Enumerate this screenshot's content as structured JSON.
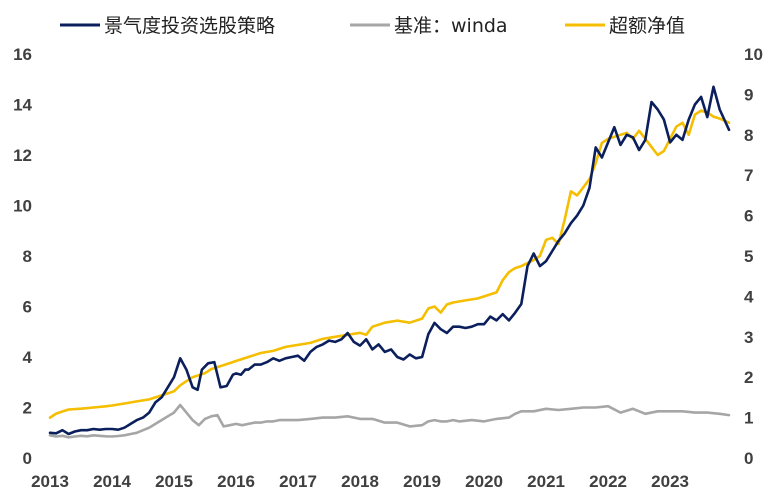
{
  "chart_data": {
    "type": "line",
    "title": "",
    "legend": [
      {
        "name": "景气度投资选股策略",
        "color": "#0B1F5C",
        "axis": "left"
      },
      {
        "name": "基准：winda",
        "color": "#A6A6A6",
        "axis": "left"
      },
      {
        "name": "超额净值",
        "color": "#F5BE00",
        "axis": "right"
      }
    ],
    "legend_position": "top",
    "x_ticks": [
      "2013",
      "2014",
      "2015",
      "2016",
      "2017",
      "2018",
      "2019",
      "2020",
      "2021",
      "2022",
      "2023"
    ],
    "x_range": [
      2013.0,
      2023.95
    ],
    "left_axis": {
      "min": 0,
      "max": 16,
      "ticks": [
        "0",
        "2",
        "4",
        "6",
        "8",
        "10",
        "12",
        "14",
        "16"
      ]
    },
    "right_axis": {
      "min": 0,
      "max": 10,
      "ticks": [
        "0",
        "1",
        "2",
        "3",
        "4",
        "5",
        "6",
        "7",
        "8",
        "9",
        "10"
      ]
    },
    "grid": false,
    "series": [
      {
        "name": "景气度投资选股策略",
        "axis": "left",
        "color": "#0B1F5C",
        "x": [
          2013.0,
          2013.1,
          2013.2,
          2013.3,
          2013.4,
          2013.5,
          2013.6,
          2013.7,
          2013.8,
          2013.9,
          2014.0,
          2014.1,
          2014.2,
          2014.3,
          2014.4,
          2014.5,
          2014.6,
          2014.7,
          2014.8,
          2014.9,
          2015.0,
          2015.1,
          2015.2,
          2015.3,
          2015.38,
          2015.45,
          2015.55,
          2015.65,
          2015.75,
          2015.85,
          2015.95,
          2016.0,
          2016.08,
          2016.15,
          2016.2,
          2016.3,
          2016.4,
          2016.5,
          2016.6,
          2016.7,
          2016.8,
          2016.9,
          2017.0,
          2017.1,
          2017.2,
          2017.3,
          2017.4,
          2017.5,
          2017.6,
          2017.7,
          2017.8,
          2017.9,
          2018.0,
          2018.1,
          2018.2,
          2018.3,
          2018.4,
          2018.5,
          2018.6,
          2018.7,
          2018.8,
          2018.9,
          2019.0,
          2019.1,
          2019.2,
          2019.3,
          2019.4,
          2019.5,
          2019.6,
          2019.7,
          2019.8,
          2019.9,
          2020.0,
          2020.1,
          2020.2,
          2020.3,
          2020.4,
          2020.5,
          2020.6,
          2020.7,
          2020.8,
          2020.9,
          2021.0,
          2021.1,
          2021.2,
          2021.3,
          2021.4,
          2021.5,
          2021.6,
          2021.7,
          2021.8,
          2021.9,
          2022.0,
          2022.1,
          2022.2,
          2022.3,
          2022.4,
          2022.5,
          2022.6,
          2022.7,
          2022.8,
          2022.9,
          2023.0,
          2023.1,
          2023.2,
          2023.3,
          2023.4,
          2023.5,
          2023.6,
          2023.7,
          2023.8,
          2023.95
        ],
        "y": [
          1.0,
          0.98,
          1.1,
          0.95,
          1.05,
          1.1,
          1.1,
          1.15,
          1.12,
          1.15,
          1.15,
          1.12,
          1.2,
          1.35,
          1.5,
          1.6,
          1.8,
          2.2,
          2.4,
          2.8,
          3.2,
          3.95,
          3.5,
          2.8,
          2.7,
          3.5,
          3.75,
          3.8,
          2.8,
          2.85,
          3.3,
          3.35,
          3.3,
          3.5,
          3.5,
          3.7,
          3.7,
          3.8,
          3.95,
          3.85,
          3.95,
          4.0,
          4.05,
          3.85,
          4.2,
          4.4,
          4.5,
          4.65,
          4.6,
          4.7,
          4.95,
          4.6,
          4.45,
          4.7,
          4.3,
          4.5,
          4.2,
          4.3,
          4.0,
          3.9,
          4.1,
          3.95,
          4.0,
          4.9,
          5.35,
          5.1,
          4.95,
          5.2,
          5.2,
          5.15,
          5.2,
          5.3,
          5.3,
          5.6,
          5.45,
          5.7,
          5.45,
          5.75,
          6.1,
          7.6,
          8.1,
          7.6,
          7.8,
          8.2,
          8.6,
          8.9,
          9.3,
          9.6,
          10.0,
          10.7,
          12.3,
          11.9,
          12.5,
          13.1,
          12.4,
          12.8,
          12.7,
          12.2,
          12.6,
          14.1,
          13.8,
          13.4,
          12.5,
          12.8,
          12.6,
          13.4,
          14.0,
          14.3,
          13.5,
          14.7,
          13.8,
          13.0
        ],
        "note": "x values are in fractional years (data units)"
      },
      {
        "name": "基准：winda",
        "axis": "left",
        "color": "#A6A6A6",
        "x": [
          2013.0,
          2013.1,
          2013.2,
          2013.3,
          2013.4,
          2013.5,
          2013.6,
          2013.7,
          2013.8,
          2013.9,
          2014.0,
          2014.1,
          2014.2,
          2014.3,
          2014.4,
          2014.5,
          2014.6,
          2014.7,
          2014.8,
          2014.9,
          2015.0,
          2015.1,
          2015.2,
          2015.3,
          2015.4,
          2015.5,
          2015.6,
          2015.7,
          2015.8,
          2015.9,
          2016.0,
          2016.1,
          2016.2,
          2016.3,
          2016.4,
          2016.5,
          2016.6,
          2016.7,
          2016.8,
          2016.9,
          2017.0,
          2017.2,
          2017.4,
          2017.6,
          2017.8,
          2018.0,
          2018.2,
          2018.4,
          2018.6,
          2018.8,
          2019.0,
          2019.1,
          2019.2,
          2019.3,
          2019.4,
          2019.5,
          2019.6,
          2019.8,
          2020.0,
          2020.2,
          2020.4,
          2020.5,
          2020.6,
          2020.8,
          2021.0,
          2021.2,
          2021.4,
          2021.6,
          2021.8,
          2022.0,
          2022.2,
          2022.4,
          2022.6,
          2022.8,
          2023.0,
          2023.2,
          2023.4,
          2023.6,
          2023.8,
          2023.95
        ],
        "y": [
          0.9,
          0.85,
          0.88,
          0.82,
          0.85,
          0.88,
          0.86,
          0.9,
          0.88,
          0.86,
          0.85,
          0.87,
          0.9,
          0.95,
          1.0,
          1.1,
          1.2,
          1.35,
          1.5,
          1.65,
          1.8,
          2.1,
          1.8,
          1.5,
          1.3,
          1.55,
          1.65,
          1.7,
          1.25,
          1.3,
          1.35,
          1.3,
          1.35,
          1.4,
          1.4,
          1.45,
          1.45,
          1.5,
          1.5,
          1.5,
          1.5,
          1.55,
          1.6,
          1.6,
          1.65,
          1.55,
          1.55,
          1.4,
          1.4,
          1.25,
          1.3,
          1.45,
          1.5,
          1.45,
          1.45,
          1.5,
          1.45,
          1.5,
          1.45,
          1.55,
          1.6,
          1.75,
          1.85,
          1.85,
          1.95,
          1.9,
          1.95,
          2.0,
          2.0,
          2.05,
          1.8,
          1.95,
          1.75,
          1.85,
          1.85,
          1.85,
          1.8,
          1.8,
          1.75,
          1.7
        ],
        "note": "x values are in fractional years (data units)"
      },
      {
        "name": "超额净值",
        "axis": "right",
        "color": "#F5BE00",
        "x": [
          2013.0,
          2013.1,
          2013.2,
          2013.3,
          2013.5,
          2013.7,
          2013.9,
          2014.0,
          2014.2,
          2014.4,
          2014.6,
          2014.8,
          2015.0,
          2015.1,
          2015.2,
          2015.3,
          2015.4,
          2015.5,
          2015.6,
          2015.7,
          2015.8,
          2015.9,
          2016.0,
          2016.2,
          2016.4,
          2016.6,
          2016.8,
          2017.0,
          2017.2,
          2017.4,
          2017.6,
          2017.8,
          2018.0,
          2018.1,
          2018.2,
          2018.4,
          2018.6,
          2018.8,
          2019.0,
          2019.1,
          2019.2,
          2019.3,
          2019.4,
          2019.5,
          2019.7,
          2019.9,
          2020.0,
          2020.2,
          2020.3,
          2020.4,
          2020.5,
          2020.6,
          2020.8,
          2020.9,
          2021.0,
          2021.1,
          2021.2,
          2021.3,
          2021.4,
          2021.5,
          2021.6,
          2021.7,
          2021.8,
          2021.9,
          2022.0,
          2022.1,
          2022.2,
          2022.3,
          2022.4,
          2022.5,
          2022.6,
          2022.7,
          2022.8,
          2022.9,
          2023.0,
          2023.1,
          2023.2,
          2023.3,
          2023.4,
          2023.5,
          2023.6,
          2023.7,
          2023.8,
          2023.95
        ],
        "y": [
          1.0,
          1.1,
          1.15,
          1.2,
          1.22,
          1.25,
          1.28,
          1.3,
          1.35,
          1.4,
          1.45,
          1.55,
          1.65,
          1.8,
          1.9,
          2.0,
          2.05,
          2.1,
          2.2,
          2.25,
          2.3,
          2.35,
          2.4,
          2.5,
          2.6,
          2.65,
          2.75,
          2.8,
          2.85,
          2.95,
          3.0,
          3.05,
          3.1,
          3.05,
          3.25,
          3.35,
          3.4,
          3.35,
          3.45,
          3.7,
          3.75,
          3.6,
          3.8,
          3.85,
          3.9,
          3.95,
          4.0,
          4.1,
          4.4,
          4.6,
          4.7,
          4.75,
          4.9,
          5.0,
          5.4,
          5.45,
          5.3,
          5.9,
          6.6,
          6.5,
          6.7,
          6.9,
          7.3,
          7.8,
          7.9,
          7.95,
          8.0,
          8.05,
          7.9,
          8.1,
          7.9,
          7.7,
          7.5,
          7.6,
          7.9,
          8.2,
          8.3,
          8.0,
          8.5,
          8.6,
          8.55,
          8.45,
          8.4,
          8.3
        ],
        "note": "x values are in fractional years (data units)"
      }
    ]
  }
}
